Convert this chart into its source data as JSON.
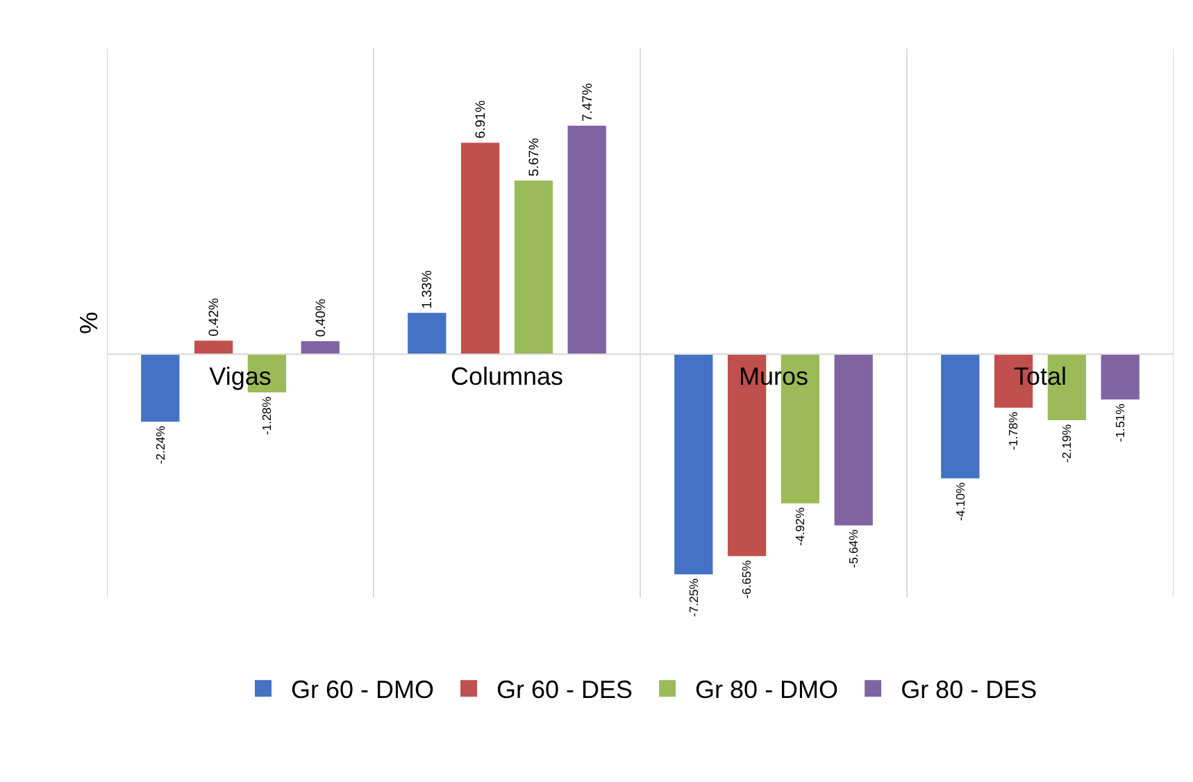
{
  "chart_data": {
    "type": "bar",
    "ylabel": "%",
    "categories": [
      "Vigas",
      "Columnas",
      "Muros",
      "Total"
    ],
    "ylim": [
      -8,
      10
    ],
    "grid": "x",
    "legend": "bottom",
    "series": [
      {
        "name": "Gr 60 - DMO",
        "color": "#4472c4",
        "values": [
          -2.24,
          1.33,
          -7.25,
          -4.1
        ],
        "value_labels": [
          "-2.24%",
          "1.33%",
          "-7.25%",
          "-4.10%"
        ]
      },
      {
        "name": "Gr 60 - DES",
        "color": "#c0504d",
        "values": [
          0.42,
          6.91,
          -6.65,
          -1.78
        ],
        "value_labels": [
          "0.42%",
          "6.91%",
          "-6.65%",
          "-1.78%"
        ]
      },
      {
        "name": "Gr 80 - DMO",
        "color": "#9bbb59",
        "values": [
          -1.28,
          5.67,
          -4.92,
          -2.19
        ],
        "value_labels": [
          "-1.28%",
          "5.67%",
          "-4.92%",
          "-2.19%"
        ]
      },
      {
        "name": "Gr 80 - DES",
        "color": "#8064a2",
        "values": [
          0.4,
          7.47,
          -5.64,
          -1.51
        ],
        "value_labels": [
          "0.40%",
          "7.47%",
          "-5.64%",
          "-1.51%"
        ]
      }
    ]
  }
}
